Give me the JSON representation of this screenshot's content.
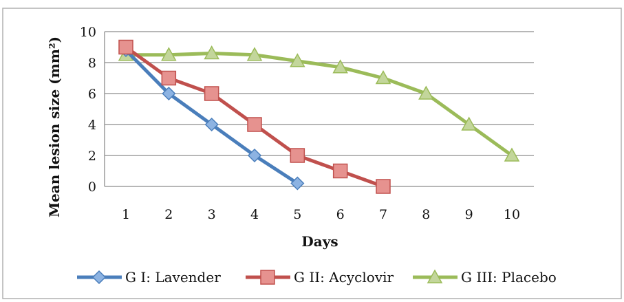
{
  "chart_data": {
    "type": "line",
    "title": "",
    "xlabel": "Days",
    "ylabel": "Mean lesion size (mm²)",
    "categories": [
      "1",
      "2",
      "3",
      "4",
      "5",
      "6",
      "7",
      "8",
      "9",
      "10"
    ],
    "ylim": [
      0,
      10
    ],
    "yticks": [
      "0",
      "2",
      "4",
      "6",
      "8",
      "10"
    ],
    "grid": "horizontal",
    "legend_position": "bottom",
    "series": [
      {
        "name": "G I: Lavender",
        "color": "#4a7ebb",
        "marker": "diamond",
        "values": [
          8.8,
          6,
          4,
          2,
          0.2,
          null,
          null,
          null,
          null,
          null
        ]
      },
      {
        "name": "G II: Acyclovir",
        "color": "#c0504d",
        "marker": "square",
        "values": [
          9,
          7,
          6,
          4,
          2,
          1,
          0,
          null,
          null,
          null
        ]
      },
      {
        "name": "G III: Placebo",
        "color": "#9bbb59",
        "marker": "triangle",
        "values": [
          8.5,
          8.5,
          8.6,
          8.5,
          8.1,
          7.7,
          7,
          6,
          4,
          2
        ]
      }
    ]
  }
}
